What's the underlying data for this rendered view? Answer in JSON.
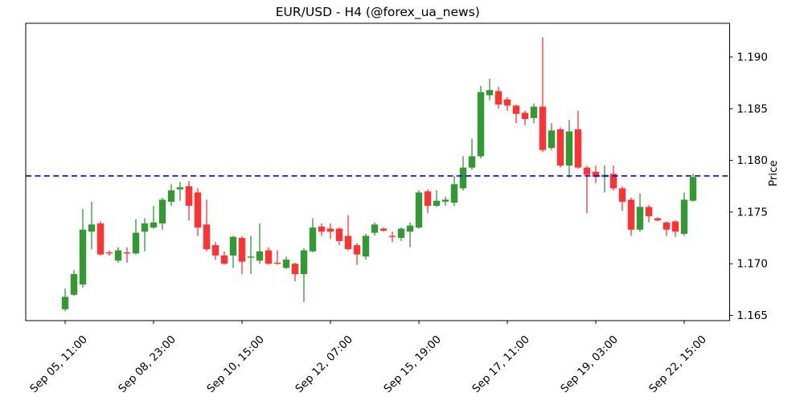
{
  "chart_data": {
    "type": "candlestick",
    "title": "EUR/USD - H4 (@forex_ua_news)",
    "ylabel": "Price",
    "xlabel": "",
    "grid": false,
    "legend": null,
    "ylim": [
      1.1645,
      1.19326
    ],
    "yticks": [
      1.165,
      1.17,
      1.175,
      1.18,
      1.185,
      1.19
    ],
    "ytick_labels": [
      "1.165",
      "1.170",
      "1.175",
      "1.180",
      "1.185",
      "1.190"
    ],
    "xticks": [
      {
        "index": 0,
        "label": "Sep 05, 11:00"
      },
      {
        "index": 10,
        "label": "Sep 08, 23:00"
      },
      {
        "index": 20,
        "label": "Sep 10, 15:00"
      },
      {
        "index": 30,
        "label": "Sep 12, 07:00"
      },
      {
        "index": 40,
        "label": "Sep 15, 19:00"
      },
      {
        "index": 50,
        "label": "Sep 17, 11:00"
      },
      {
        "index": 60,
        "label": "Sep 19, 03:00"
      },
      {
        "index": 70,
        "label": "Sep 22, 15:00"
      }
    ],
    "hline": {
      "value": 1.1785,
      "color": "#0000ff",
      "style": "dashed"
    },
    "colors": {
      "up": "#339933",
      "down": "#ff3333",
      "hline": "#0000ff",
      "axis": "#000000"
    },
    "candles_format": [
      "open",
      "high",
      "low",
      "close"
    ],
    "candles": [
      [
        1.1656,
        1.1676,
        1.1654,
        1.1668
      ],
      [
        1.167,
        1.1694,
        1.1669,
        1.169
      ],
      [
        1.168,
        1.1753,
        1.1677,
        1.1733
      ],
      [
        1.1731,
        1.176,
        1.1714,
        1.1738
      ],
      [
        1.1739,
        1.1741,
        1.1708,
        1.1709
      ],
      [
        1.1711,
        1.1713,
        1.1708,
        1.171
      ],
      [
        1.1703,
        1.1716,
        1.1701,
        1.1713
      ],
      [
        1.1711,
        1.1716,
        1.1701,
        1.171
      ],
      [
        1.171,
        1.1743,
        1.1709,
        1.173
      ],
      [
        1.1731,
        1.1744,
        1.1712,
        1.1739
      ],
      [
        1.1735,
        1.1756,
        1.1734,
        1.174
      ],
      [
        1.1739,
        1.1764,
        1.1733,
        1.1762
      ],
      [
        1.176,
        1.1777,
        1.1756,
        1.1771
      ],
      [
        1.1772,
        1.1779,
        1.1761,
        1.1774
      ],
      [
        1.1775,
        1.178,
        1.1742,
        1.1756
      ],
      [
        1.1769,
        1.1773,
        1.1727,
        1.1735
      ],
      [
        1.1738,
        1.1762,
        1.1712,
        1.1714
      ],
      [
        1.1718,
        1.1721,
        1.1704,
        1.1708
      ],
      [
        1.1708,
        1.1712,
        1.1699,
        1.17
      ],
      [
        1.1708,
        1.1727,
        1.1696,
        1.1726
      ],
      [
        1.1725,
        1.1727,
        1.169,
        1.1702
      ],
      [
        1.1706,
        1.1727,
        1.169,
        1.1707
      ],
      [
        1.1703,
        1.1739,
        1.17,
        1.1712
      ],
      [
        1.1713,
        1.1716,
        1.1699,
        1.17
      ],
      [
        1.1701,
        1.1713,
        1.1699,
        1.17
      ],
      [
        1.1696,
        1.1707,
        1.1695,
        1.1704
      ],
      [
        1.17,
        1.1701,
        1.1683,
        1.169
      ],
      [
        1.169,
        1.1715,
        1.1663,
        1.1713
      ],
      [
        1.1712,
        1.1744,
        1.1711,
        1.1735
      ],
      [
        1.1736,
        1.1739,
        1.1727,
        1.1731
      ],
      [
        1.1734,
        1.1739,
        1.1724,
        1.1731
      ],
      [
        1.1734,
        1.1735,
        1.1718,
        1.1722
      ],
      [
        1.1727,
        1.1747,
        1.1713,
        1.1714
      ],
      [
        1.1718,
        1.172,
        1.1699,
        1.1709
      ],
      [
        1.1707,
        1.1729,
        1.1704,
        1.1727
      ],
      [
        1.173,
        1.174,
        1.1727,
        1.1738
      ],
      [
        1.1734,
        1.1735,
        1.1731,
        1.1732
      ],
      [
        1.1727,
        1.1731,
        1.1721,
        1.1726
      ],
      [
        1.1725,
        1.1735,
        1.1722,
        1.1734
      ],
      [
        1.1731,
        1.174,
        1.1716,
        1.1737
      ],
      [
        1.1735,
        1.1771,
        1.1734,
        1.1769
      ],
      [
        1.177,
        1.1772,
        1.1749,
        1.1756
      ],
      [
        1.1756,
        1.1771,
        1.1755,
        1.1761
      ],
      [
        1.176,
        1.1765,
        1.1756,
        1.1762
      ],
      [
        1.1759,
        1.1785,
        1.1756,
        1.1777
      ],
      [
        1.1773,
        1.1804,
        1.1771,
        1.1793
      ],
      [
        1.1793,
        1.1821,
        1.1791,
        1.1804
      ],
      [
        1.1804,
        1.1872,
        1.1802,
        1.1866
      ],
      [
        1.1863,
        1.1879,
        1.1858,
        1.1868
      ],
      [
        1.1867,
        1.1871,
        1.185,
        1.1854
      ],
      [
        1.1859,
        1.1861,
        1.1848,
        1.1853
      ],
      [
        1.1853,
        1.1854,
        1.1836,
        1.1845
      ],
      [
        1.1846,
        1.1848,
        1.1834,
        1.184
      ],
      [
        1.1841,
        1.1855,
        1.1836,
        1.1852
      ],
      [
        1.1852,
        1.1919,
        1.1808,
        1.181
      ],
      [
        1.1812,
        1.1836,
        1.181,
        1.1829
      ],
      [
        1.183,
        1.1832,
        1.1793,
        1.1795
      ],
      [
        1.1795,
        1.1839,
        1.1783,
        1.1828
      ],
      [
        1.183,
        1.1848,
        1.1792,
        1.1793
      ],
      [
        1.1793,
        1.1795,
        1.1749,
        1.1786
      ],
      [
        1.1789,
        1.1795,
        1.1778,
        1.1784
      ],
      [
        1.1784,
        1.1795,
        1.1769,
        1.1786
      ],
      [
        1.1787,
        1.1795,
        1.1771,
        1.1773
      ],
      [
        1.1773,
        1.1775,
        1.1751,
        1.176
      ],
      [
        1.1762,
        1.1764,
        1.1727,
        1.1733
      ],
      [
        1.1733,
        1.1768,
        1.1731,
        1.1755
      ],
      [
        1.1755,
        1.1757,
        1.174,
        1.1746
      ],
      [
        1.1744,
        1.1745,
        1.1741,
        1.1742
      ],
      [
        1.174,
        1.1741,
        1.1727,
        1.1733
      ],
      [
        1.1741,
        1.1742,
        1.1726,
        1.1731
      ],
      [
        1.1729,
        1.1769,
        1.1727,
        1.1762
      ],
      [
        1.1761,
        1.1787,
        1.176,
        1.1784
      ]
    ]
  }
}
